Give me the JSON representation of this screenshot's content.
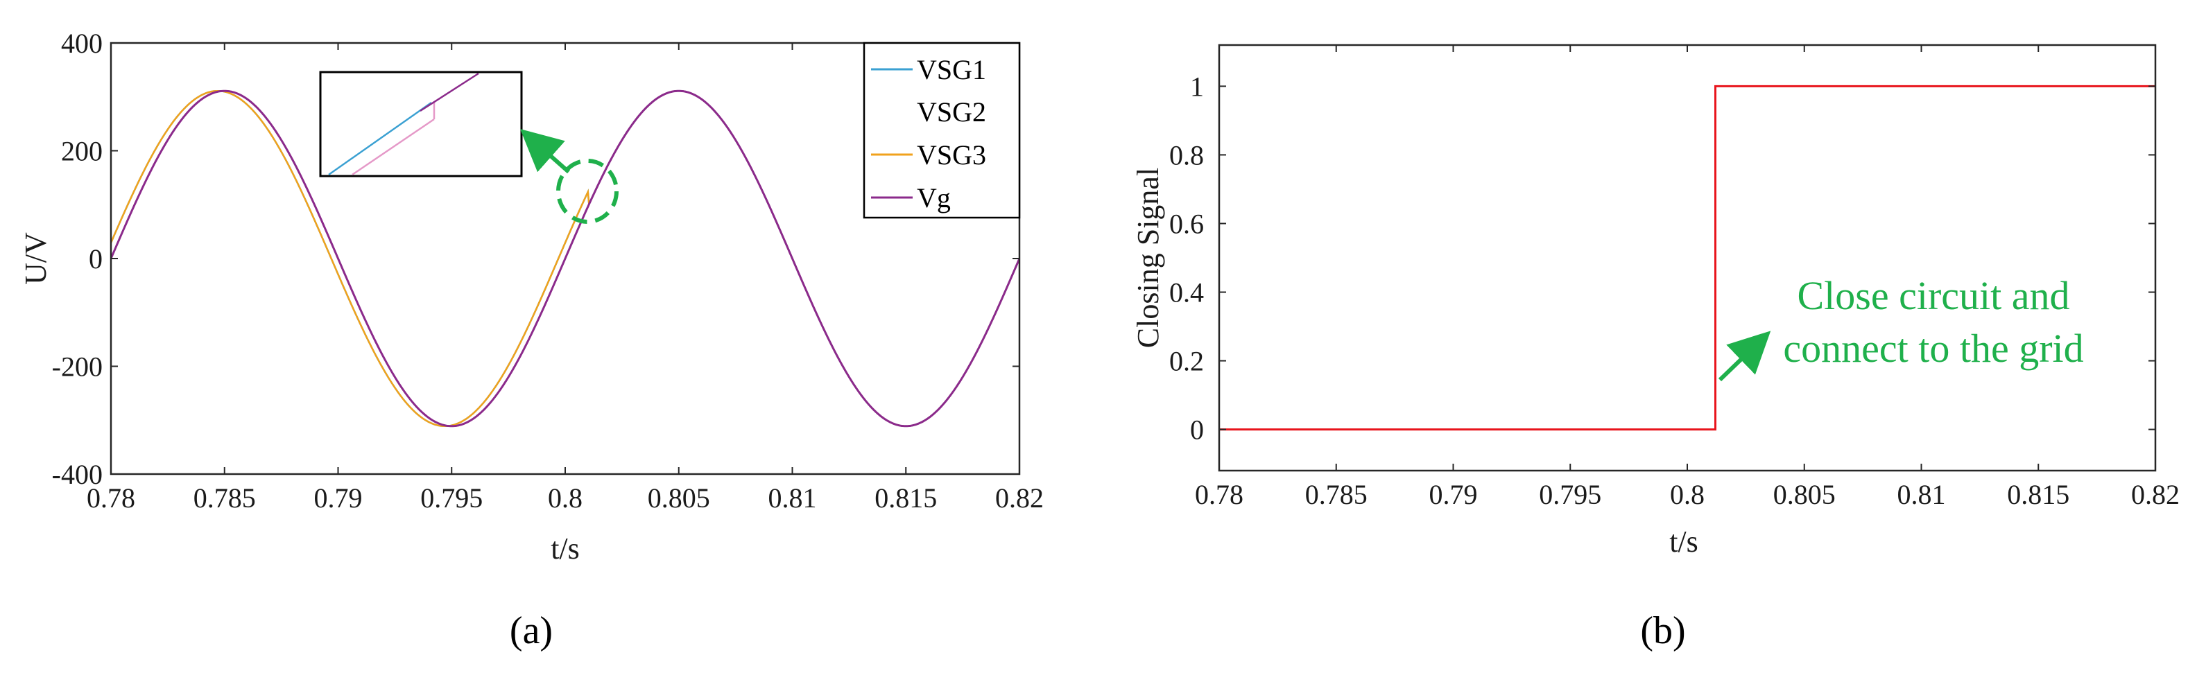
{
  "colors": {
    "vsg1": "#3aa0d2",
    "vsg2": "#ffffff",
    "vsg3": "#f0a21c",
    "vg": "#8b2a8b",
    "closing": "#e8141c",
    "annotation": "#1fb04b",
    "axis": "#262626"
  },
  "chart_data": [
    {
      "type": "line",
      "panel_label": "(a)",
      "title": "",
      "xlabel": "t/s",
      "ylabel": "U/V",
      "xlim": [
        0.78,
        0.82
      ],
      "ylim": [
        -400,
        400
      ],
      "xticks": [
        "0.78",
        "0.785",
        "0.79",
        "0.795",
        "0.8",
        "0.805",
        "0.81",
        "0.815",
        "0.82"
      ],
      "yticks": [
        "400",
        "200",
        "0",
        "-200",
        "-400"
      ],
      "legend_position": "top-right",
      "series": [
        {
          "name": "VSG1",
          "amplitude": 311,
          "frequency_hz": 50,
          "phase_shift_s": 0.0003
        },
        {
          "name": "VSG2",
          "amplitude": 311,
          "frequency_hz": 50,
          "phase_shift_s": 0.0003
        },
        {
          "name": "VSG3",
          "amplitude": 311,
          "frequency_hz": 50,
          "phase_shift_s": 0.0003
        },
        {
          "name": "Vg",
          "amplitude": 311,
          "frequency_hz": 50,
          "phase_shift_s": 0.0
        }
      ],
      "sync_time_s": 0.801,
      "annotation": "zoomed inset of grid-connection instant"
    },
    {
      "type": "line",
      "panel_label": "(b)",
      "title": "",
      "xlabel": "t/s",
      "ylabel": "Closing Signal",
      "xlim": [
        0.78,
        0.82
      ],
      "ylim": [
        -0.12,
        1.12
      ],
      "xticks": [
        "0.78",
        "0.785",
        "0.79",
        "0.795",
        "0.8",
        "0.805",
        "0.81",
        "0.815",
        "0.82"
      ],
      "yticks": [
        "1",
        "0.8",
        "0.6",
        "0.4",
        "0.2",
        "0"
      ],
      "series": [
        {
          "name": "Closing Signal",
          "x": [
            0.78,
            0.8012,
            0.8012,
            0.82
          ],
          "y": [
            0,
            0,
            1,
            1
          ]
        }
      ],
      "annotation_line1": "Close circuit and",
      "annotation_line2": "connect to the grid"
    }
  ]
}
